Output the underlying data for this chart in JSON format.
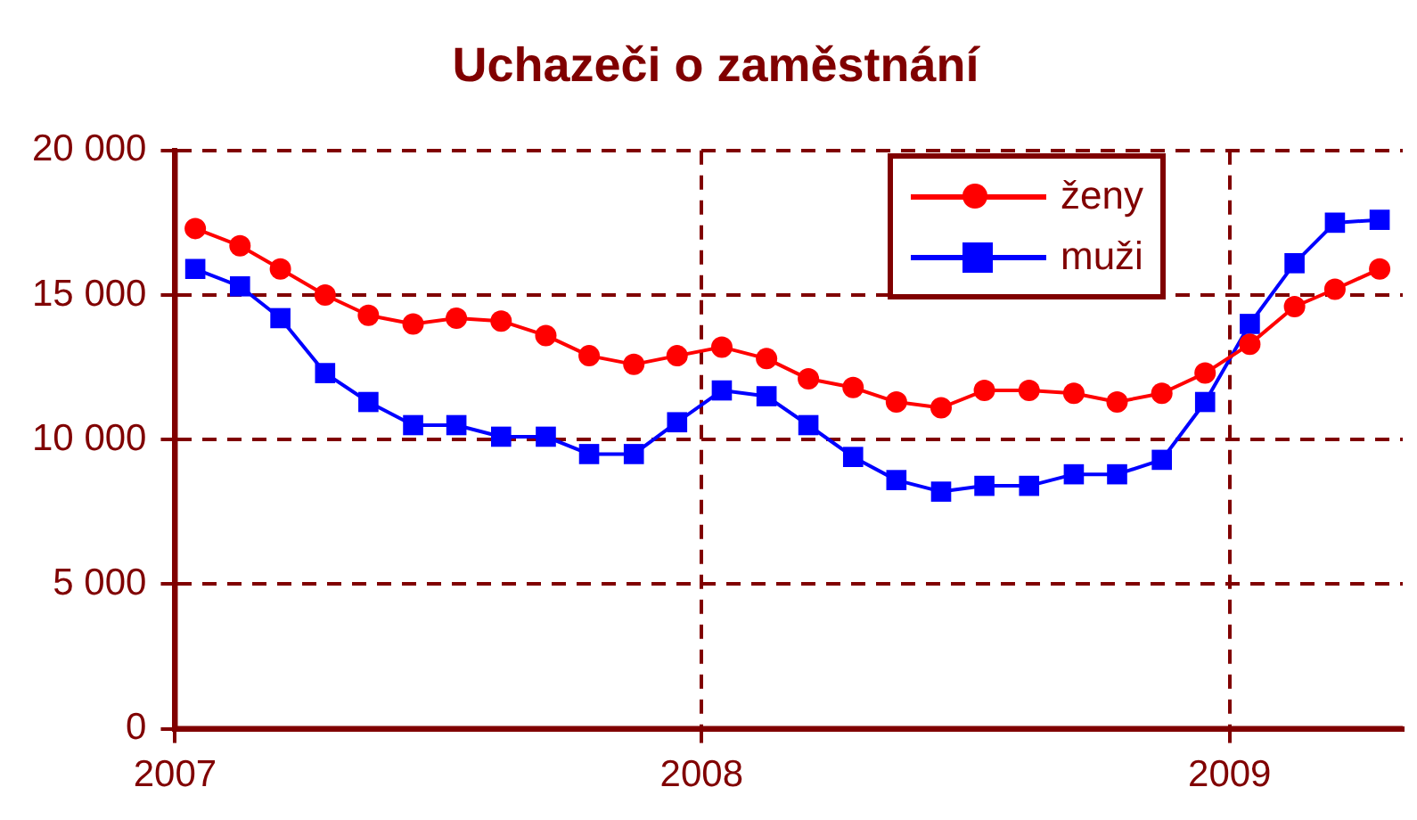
{
  "chart_data": {
    "type": "line",
    "title": "Uchazeči o zaměstnání",
    "x": [
      "2007-01-15",
      "2007-02-15",
      "2007-03-15",
      "2007-04-15",
      "2007-05-15",
      "2007-06-15",
      "2007-07-15",
      "2007-08-15",
      "2007-09-15",
      "2007-10-15",
      "2007-11-15",
      "2007-12-15",
      "2008-01-15",
      "2008-02-15",
      "2008-03-15",
      "2008-04-15",
      "2008-05-15",
      "2008-06-15",
      "2008-07-15",
      "2008-08-15",
      "2008-09-15",
      "2008-10-15",
      "2008-11-15",
      "2008-12-15",
      "2009-01-15",
      "2009-02-15",
      "2009-03-15",
      "2009-04-15"
    ],
    "series": [
      {
        "name": "ženy",
        "color": "#ff0000",
        "marker": "circle",
        "values": [
          17300,
          16700,
          15900,
          15000,
          14300,
          14000,
          14200,
          14100,
          13600,
          12900,
          12600,
          12900,
          13200,
          12800,
          12100,
          11800,
          11300,
          11100,
          11700,
          11700,
          11600,
          11300,
          11600,
          12300,
          13300,
          14600,
          15200,
          15900
        ]
      },
      {
        "name": "muži",
        "color": "#0000ff",
        "marker": "square",
        "values": [
          15900,
          15300,
          14200,
          12300,
          11300,
          10500,
          10500,
          10100,
          10100,
          9500,
          9500,
          10600,
          11700,
          11500,
          10500,
          9400,
          8600,
          8200,
          8400,
          8400,
          8800,
          8800,
          9300,
          11300,
          14000,
          16100,
          17500,
          17600
        ]
      }
    ],
    "xlim": [
      "2007",
      "2009-05"
    ],
    "xticks": [
      "2007",
      "2008",
      "2009"
    ],
    "ylim": [
      0,
      20000
    ],
    "yticks": [
      {
        "value": 0,
        "label": "0"
      },
      {
        "value": 5000,
        "label": "5 000"
      },
      {
        "value": 10000,
        "label": "10 000"
      },
      {
        "value": 15000,
        "label": "15 000"
      },
      {
        "value": 20000,
        "label": "20 000"
      }
    ],
    "grid": true,
    "legend": "top right",
    "line_style": "solid"
  }
}
